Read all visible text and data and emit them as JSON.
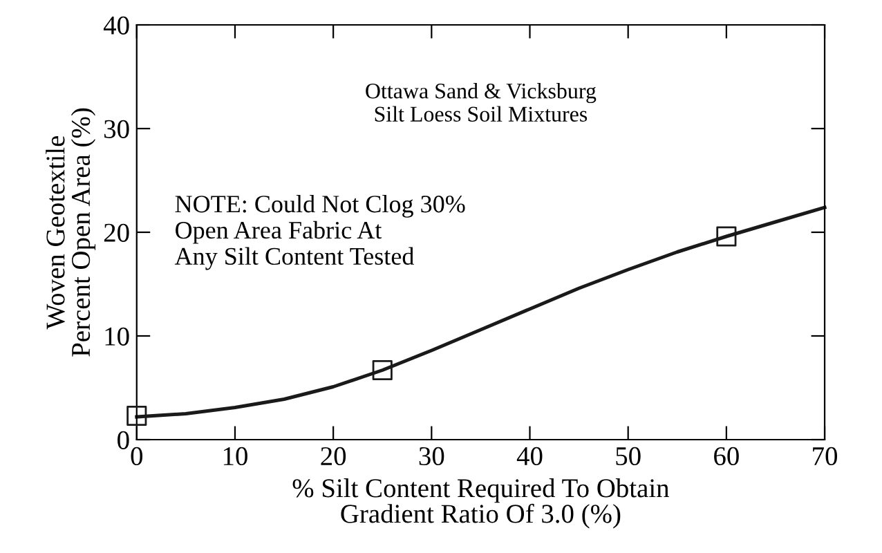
{
  "chart_data": {
    "type": "line",
    "xlabel": "% Silt Content Required To Obtain\nGradient Ratio Of 3.0 (%)",
    "ylabel": "Woven Geotextile\nPercent Open Area (%)",
    "annotations": [
      "Ottawa Sand & Vicksburg\nSilt Loess Soil Mixtures",
      "NOTE: Could Not Clog 30%\nOpen Area Fabric At\nAny Silt Content Tested"
    ],
    "series": [
      {
        "color": "#1a1a1a",
        "marker": "none",
        "x": [
          0,
          5,
          10,
          15,
          20,
          25,
          30,
          35,
          40,
          45,
          50,
          55,
          60,
          65,
          70
        ],
        "values": [
          2.2,
          2.5,
          3.1,
          3.9,
          5.1,
          6.7,
          8.6,
          10.6,
          12.6,
          14.6,
          16.4,
          18.1,
          19.6,
          21.0,
          22.4
        ]
      },
      {
        "type": "scatter",
        "color": "#1a1a1a",
        "marker": "square",
        "x": [
          0,
          25,
          60
        ],
        "values": [
          2.3,
          6.7,
          19.6
        ]
      }
    ],
    "xlim": [
      0,
      70
    ],
    "ylim": [
      0,
      40
    ],
    "xticks": [
      0,
      10,
      20,
      30,
      40,
      50,
      60,
      70
    ],
    "yticks": [
      0,
      10,
      20,
      30,
      40
    ],
    "grid": false,
    "legend": false
  }
}
